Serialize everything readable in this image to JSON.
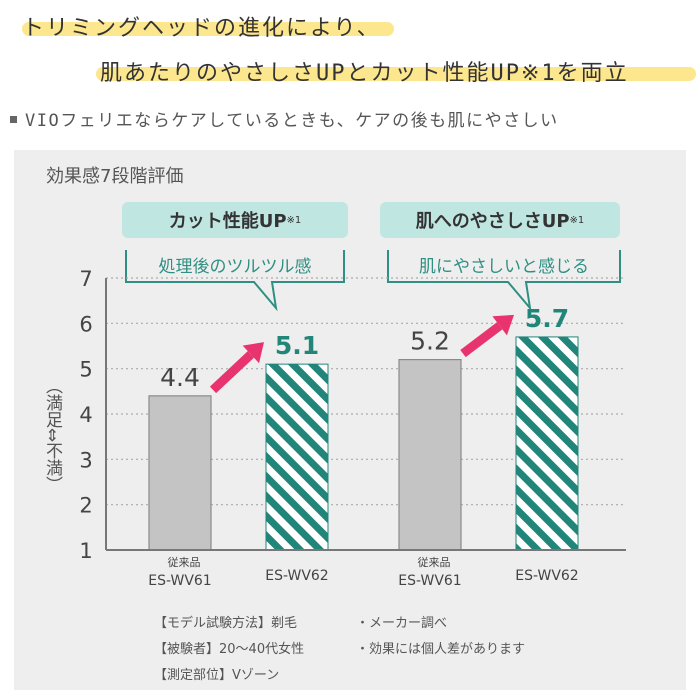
{
  "header": {
    "line1": "トリミングヘッドの進化により、",
    "line2": "肌あたりのやさしさUPとカット性能UP※1を両立",
    "subline": "VIOフェリエならケアしているときも、ケアの後も肌にやさしい"
  },
  "panel": {
    "title": "効果感7段階評価",
    "callout_left": "カット性能UP",
    "callout_left_mark": "※1",
    "bubble_left": "処理後のツルツル感",
    "callout_right": "肌へのやさしさUP",
    "callout_right_mark": "※1",
    "bubble_right": "肌にやさしいと感じる"
  },
  "chart_data": {
    "type": "bar",
    "ylabel": "（満足⇔不満）",
    "ylim": [
      1,
      7
    ],
    "y_ticks": [
      1,
      2,
      3,
      4,
      5,
      6,
      7
    ],
    "groups": [
      {
        "bars": [
          {
            "label_top": "従来品",
            "label": "ES-WV61",
            "value": 4.4,
            "style": "gray"
          },
          {
            "label_top": "",
            "label": "ES-WV62",
            "value": 5.1,
            "style": "teal-hatched"
          }
        ]
      },
      {
        "bars": [
          {
            "label_top": "従来品",
            "label": "ES-WV61",
            "value": 5.2,
            "style": "gray"
          },
          {
            "label_top": "",
            "label": "ES-WV62",
            "value": 5.7,
            "style": "teal-hatched"
          }
        ]
      }
    ],
    "colors": {
      "gray": "#c4c4c4",
      "teal": "#21857a",
      "arrow": "#e8336f"
    }
  },
  "notes": {
    "left": [
      "【モデル試験方法】剃毛",
      "【被験者】20～40代女性",
      "【測定部位】Vゾーン"
    ],
    "right": [
      "・メーカー調べ",
      "・効果には個人差があります"
    ]
  }
}
